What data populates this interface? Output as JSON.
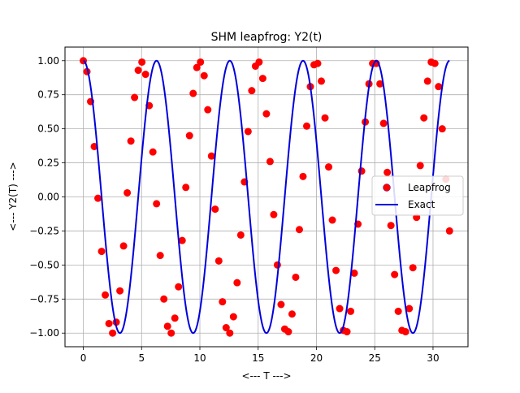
{
  "chart_data": {
    "type": "scatter",
    "title": "SHM leapfrog: Y2(t)",
    "xlabel": "<--- T --->",
    "ylabel": "<--- Y2(T) --->",
    "xlim": [
      -1.57,
      33.0
    ],
    "ylim": [
      -1.1,
      1.1
    ],
    "xticks": [
      0,
      5,
      10,
      15,
      20,
      25,
      30
    ],
    "xtick_labels": [
      "0",
      "5",
      "10",
      "15",
      "20",
      "25",
      "30"
    ],
    "yticks": [
      -1.0,
      -0.75,
      -0.5,
      -0.25,
      0.0,
      0.25,
      0.5,
      0.75,
      1.0
    ],
    "ytick_labels": [
      "−1.00",
      "−0.75",
      "−0.50",
      "−0.25",
      "0.00",
      "0.25",
      "0.50",
      "0.75",
      "1.00"
    ],
    "grid": true,
    "legend_position": "center-right",
    "series": [
      {
        "name": "Leapfrog",
        "kind": "scatter",
        "color": "#ff0000",
        "x": [
          0.0,
          0.314,
          0.628,
          0.942,
          1.257,
          1.571,
          1.885,
          2.199,
          2.513,
          2.827,
          3.142,
          3.456,
          3.77,
          4.084,
          4.398,
          4.712,
          5.027,
          5.341,
          5.655,
          5.969,
          6.283,
          6.597,
          6.912,
          7.226,
          7.54,
          7.854,
          8.168,
          8.482,
          8.796,
          9.111,
          9.425,
          9.739,
          10.053,
          10.367,
          10.681,
          10.996,
          11.31,
          11.624,
          11.938,
          12.252,
          12.566,
          12.881,
          13.195,
          13.509,
          13.823,
          14.137,
          14.451,
          14.765,
          15.08,
          15.394,
          15.708,
          16.022,
          16.336,
          16.65,
          16.965,
          17.279,
          17.593,
          17.907,
          18.221,
          18.535,
          18.85,
          19.164,
          19.478,
          19.792,
          20.106,
          20.42,
          20.735,
          21.049,
          21.363,
          21.677,
          21.991,
          22.305,
          22.619,
          22.934,
          23.248,
          23.562,
          23.876,
          24.19,
          24.504,
          24.819,
          25.133,
          25.447,
          25.761,
          26.075,
          26.389,
          26.704,
          27.018,
          27.332,
          27.646,
          27.96,
          28.274,
          28.588,
          28.903,
          29.217,
          29.531,
          29.845,
          30.159,
          30.473,
          30.788,
          31.102,
          31.416
        ],
        "y": [
          1.0,
          0.92,
          0.7,
          0.37,
          -0.01,
          -0.4,
          -0.72,
          -0.93,
          -1.0,
          -0.92,
          -0.69,
          -0.36,
          0.03,
          0.41,
          0.73,
          0.93,
          0.99,
          0.9,
          0.67,
          0.33,
          -0.05,
          -0.43,
          -0.75,
          -0.95,
          -1.0,
          -0.89,
          -0.66,
          -0.32,
          0.07,
          0.45,
          0.76,
          0.95,
          0.99,
          0.89,
          0.64,
          0.3,
          -0.09,
          -0.47,
          -0.77,
          -0.96,
          -1.0,
          -0.88,
          -0.63,
          -0.28,
          0.11,
          0.48,
          0.78,
          0.96,
          0.99,
          0.87,
          0.61,
          0.26,
          -0.13,
          -0.5,
          -0.79,
          -0.97,
          -0.99,
          -0.86,
          -0.59,
          -0.24,
          0.15,
          0.52,
          0.81,
          0.97,
          0.98,
          0.85,
          0.58,
          0.22,
          -0.17,
          -0.54,
          -0.82,
          -0.98,
          -0.99,
          -0.84,
          -0.56,
          -0.2,
          0.19,
          0.55,
          0.83,
          0.98,
          0.98,
          0.83,
          0.54,
          0.18,
          -0.21,
          -0.57,
          -0.84,
          -0.98,
          -0.99,
          -0.82,
          -0.52,
          -0.15,
          0.23,
          0.58,
          0.85,
          0.99,
          0.98,
          0.81,
          0.5,
          0.13,
          -0.25
        ]
      },
      {
        "name": "Exact",
        "kind": "line",
        "color": "#0000dd",
        "function": "cos(t)",
        "t_range": [
          0,
          31.416
        ]
      }
    ]
  }
}
